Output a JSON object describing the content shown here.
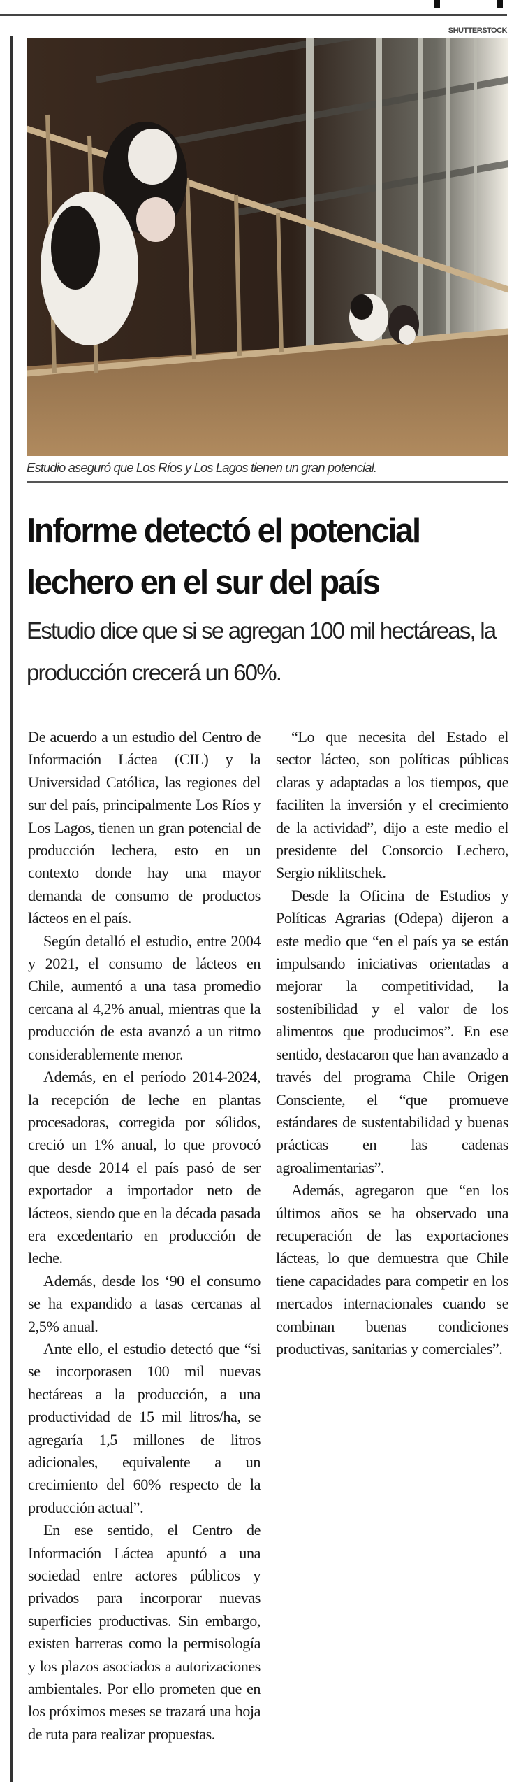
{
  "photo": {
    "credit": "SHUTTERSTOCK",
    "caption": "Estudio aseguró que Los Ríos y Los Lagos tienen un gran potencial.",
    "colors": {
      "shadow": "#2e2119",
      "light": "#f2efe6",
      "straw": "#b08a5e"
    }
  },
  "article": {
    "headline": "Informe detectó el potencial lechero en el sur del país",
    "subheadline": "Estudio dice que si se agregan 100 mil hectáreas, la producción crecerá un 60%.",
    "paragraphs": [
      "De acuerdo a un estudio del Centro de Información Láctea (CIL) y la Universidad Católica, las regiones del sur del país, principalmente Los Ríos y Los Lagos, tienen un gran potencial de producción lechera, esto en un contexto donde hay una mayor demanda de consumo de productos lácteos en el país.",
      "Según detalló el estudio, entre 2004 y 2021, el consumo de lácteos en Chile, aumentó a una tasa promedio cercana al 4,2% anual, mientras que la producción de esta avanzó a un ritmo considerablemente menor.",
      "Además, en el período 2014-2024, la recepción de leche en plantas procesadoras, corregida por sólidos, creció un 1% anual, lo que provocó que desde 2014 el país pasó de ser exportador a importador neto de lácteos, siendo que en la década pasada era excedentario en producción de leche.",
      "Además, desde los ‘90 el consumo se ha expandido a tasas cercanas al 2,5% anual.",
      "Ante ello, el estudio detectó que “si se incorporasen 100 mil nuevas hectáreas a la producción, a una productividad de 15 mil litros/ha, se agregaría 1,5 millones de litros adicionales, equivalente a un crecimiento del 60% respecto de la producción actual”.",
      "En ese sentido, el Centro de Información Láctea apuntó a una sociedad entre actores públicos y privados para incorporar nuevas superficies productivas. Sin embargo, existen barreras como la permisología y los plazos asociados a autorizaciones ambientales. Por ello prometen que en los próximos meses se trazará una hoja de ruta para realizar propuestas.",
      "“Lo que necesita del Estado el sector lácteo, son políticas públicas claras y adaptadas a los tiempos, que faciliten la inversión y el crecimiento de la actividad”, dijo a este medio el presidente del Consorcio Lechero, Sergio niklitschek.",
      "Desde la Oficina de Estudios y Políticas Agrarias (Odepa) dijeron a este medio que “en el país ya se están impulsando iniciativas orientadas a mejorar la competitividad, la sostenibilidad y el valor de los alimentos que producimos”. En ese sentido, destacaron que han avanzado a través del programa Chile Origen Consciente, el “que promueve estándares de sustentabilidad y buenas prácticas en las cadenas agroalimentarias”.",
      "Además, agregaron que “en los últimos años se ha observado una recuperación de las exportaciones lácteas, lo que demuestra que Chile tiene capacidades para competir en los mercados internacionales cuando se combinan buenas condiciones productivas, sanitarias y comerciales”."
    ]
  }
}
